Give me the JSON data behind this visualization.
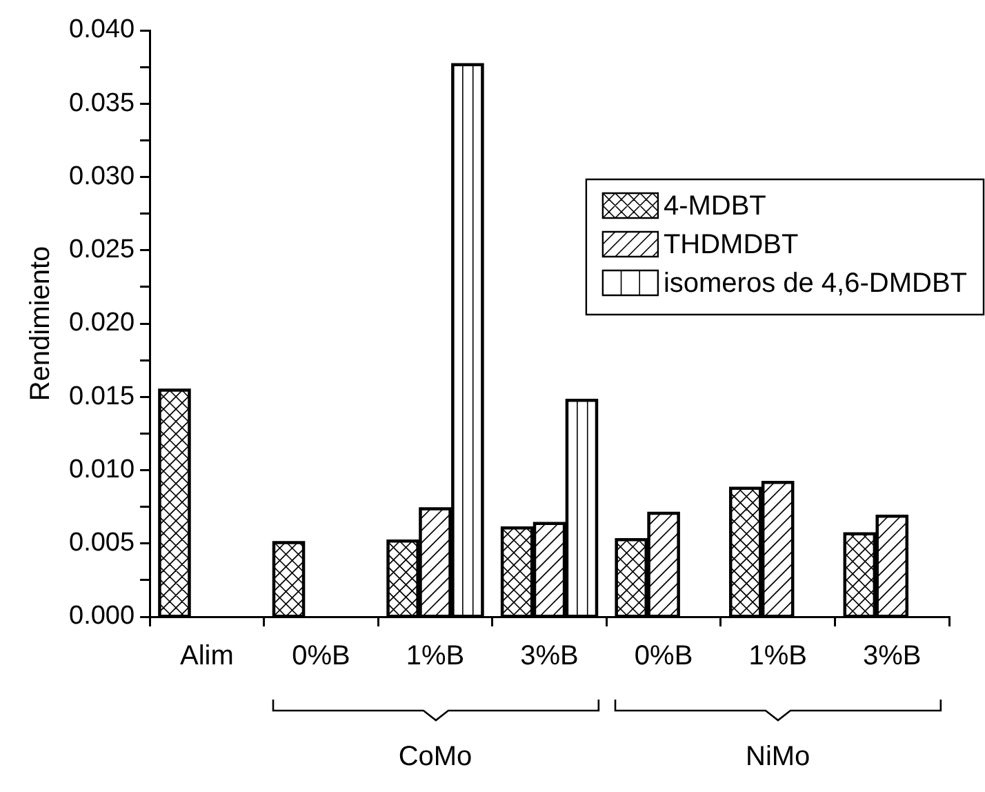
{
  "chart_data": {
    "type": "bar",
    "ylabel": "Rendimiento",
    "categories": [
      "Alim",
      "0%B",
      "1%B",
      "3%B",
      "0%B",
      "1%B",
      "3%B"
    ],
    "series": [
      {
        "name": "4-MDBT",
        "color": "#000000",
        "values": [
          0.0155,
          0.0051,
          0.0052,
          0.0061,
          0.0053,
          0.0088,
          0.0057
        ]
      },
      {
        "name": "THDMDBT",
        "color": "#000000",
        "values": [
          null,
          null,
          0.0074,
          0.0064,
          0.0071,
          0.0092,
          0.0069
        ]
      },
      {
        "name": "isomeros de 4,6-DMDBT",
        "color": "#000000",
        "values": [
          null,
          null,
          0.0377,
          0.0148,
          null,
          null,
          null
        ]
      }
    ],
    "ylim": [
      0,
      0.04
    ],
    "yticks": [
      {
        "value": 0,
        "label": "0.000"
      },
      {
        "value": 0.0025,
        "label": null
      },
      {
        "value": 0.005,
        "label": "0.005"
      },
      {
        "value": 0.0075,
        "label": null
      },
      {
        "value": 0.01,
        "label": "0.010"
      },
      {
        "value": 0.0125,
        "label": null
      },
      {
        "value": 0.015,
        "label": "0.015"
      },
      {
        "value": 0.0175,
        "label": null
      },
      {
        "value": 0.02,
        "label": "0.020"
      },
      {
        "value": 0.0225,
        "label": null
      },
      {
        "value": 0.025,
        "label": "0.025"
      },
      {
        "value": 0.0275,
        "label": null
      },
      {
        "value": 0.03,
        "label": "0.030"
      },
      {
        "value": 0.0325,
        "label": null
      },
      {
        "value": 0.035,
        "label": "0.035"
      },
      {
        "value": 0.0375,
        "label": null
      },
      {
        "value": 0.04,
        "label": "0.040"
      }
    ],
    "annotations": [
      "CoMo",
      "NiMo"
    ],
    "grid": false,
    "legend": "top right"
  }
}
